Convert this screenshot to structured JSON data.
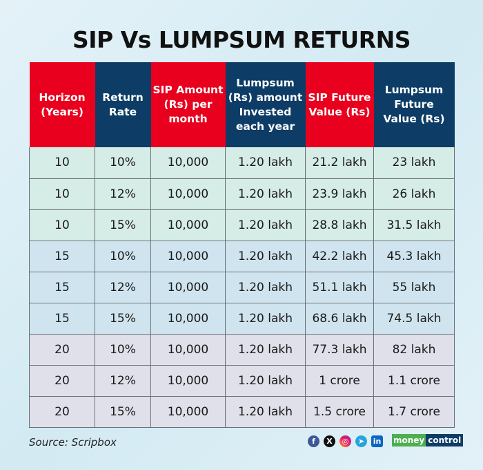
{
  "title": "SIP Vs LUMPSUM RETURNS",
  "headers": [
    "Horizon (Years)",
    "Return Rate",
    "SIP Amount (Rs) per month",
    "Lumpsum (Rs) amount Invested each year",
    "SIP Future Value (Rs)",
    "Lumpsum Future Value (Rs)"
  ],
  "rows": [
    [
      "10",
      "10%",
      "10,000",
      "1.20 lakh",
      "21.2 lakh",
      "23 lakh"
    ],
    [
      "10",
      "12%",
      "10,000",
      "1.20 lakh",
      "23.9 lakh",
      "26 lakh"
    ],
    [
      "10",
      "15%",
      "10,000",
      "1.20 lakh",
      "28.8 lakh",
      "31.5 lakh"
    ],
    [
      "15",
      "10%",
      "10,000",
      "1.20 lakh",
      "42.2 lakh",
      "45.3 lakh"
    ],
    [
      "15",
      "12%",
      "10,000",
      "1.20 lakh",
      "51.1 lakh",
      "55 lakh"
    ],
    [
      "15",
      "15%",
      "10,000",
      "1.20 lakh",
      "68.6 lakh",
      "74.5 lakh"
    ],
    [
      "20",
      "10%",
      "10,000",
      "1.20 lakh",
      "77.3 lakh",
      "82 lakh"
    ],
    [
      "20",
      "12%",
      "10,000",
      "1.20 lakh",
      "1 crore",
      "1.1 crore"
    ],
    [
      "20",
      "15%",
      "10,000",
      "1.20 lakh",
      "1.5 crore",
      "1.7 crore"
    ]
  ],
  "source": "Source: Scripbox",
  "social": [
    "facebook-icon",
    "x-icon",
    "instagram-icon",
    "telegram-icon",
    "linkedin-icon"
  ],
  "logo": {
    "part1": "money",
    "part2": "control"
  },
  "colors": {
    "red": "#e8001e",
    "navy": "#0d3d66"
  }
}
